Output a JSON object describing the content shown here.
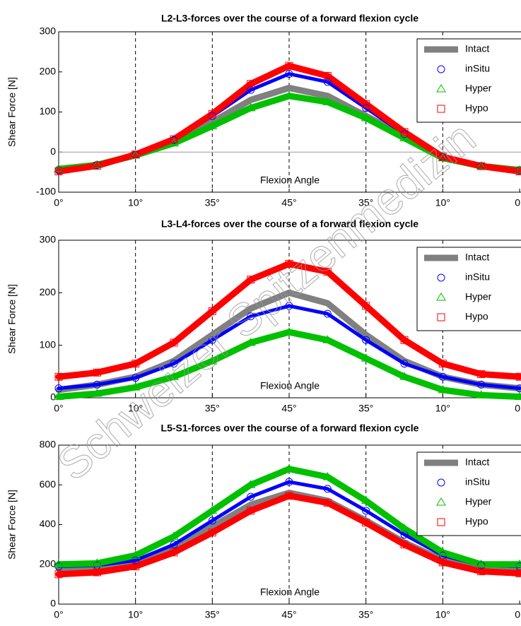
{
  "chart_data": [
    {
      "type": "line",
      "title": "L2-L3-forces over the course of a forward flexion cycle",
      "ylabel": "Shear Force [N]",
      "annotation": "Flexion Angle",
      "x": [
        0,
        0.5,
        1,
        1.5,
        2,
        2.5,
        3,
        3.5,
        4,
        4.5,
        5,
        5.5,
        6
      ],
      "xlim": [
        0,
        6
      ],
      "xticks": [
        {
          "value": 0,
          "label": "0°"
        },
        {
          "value": 1,
          "label": "10°"
        },
        {
          "value": 2,
          "label": "35°"
        },
        {
          "value": 3,
          "label": "45°"
        },
        {
          "value": 4,
          "label": "35°"
        },
        {
          "value": 5,
          "label": "10°"
        },
        {
          "value": 6,
          "label": "0°"
        }
      ],
      "ylim": [
        -100,
        300
      ],
      "yticks": [
        -100,
        0,
        100,
        200,
        300
      ],
      "grid": "x",
      "zero_line": true,
      "legend": "upper right",
      "series": [
        {
          "name": "Intact",
          "color": "#808080",
          "marker": "none",
          "values": [
            -45,
            -32,
            -8,
            25,
            75,
            130,
            160,
            140,
            90,
            40,
            -15,
            -35,
            -45
          ]
        },
        {
          "name": "inSitu",
          "color": "#0000ff",
          "marker": "circle",
          "values": [
            -45,
            -32,
            -6,
            30,
            90,
            155,
            195,
            175,
            110,
            45,
            -12,
            -35,
            -45
          ]
        },
        {
          "name": "Hyper",
          "color": "#00c000",
          "marker": "triangle",
          "values": [
            -42,
            -32,
            -8,
            22,
            65,
            110,
            140,
            125,
            85,
            35,
            -15,
            -35,
            -45
          ]
        },
        {
          "name": "Hypo",
          "color": "#ff0000",
          "marker": "square",
          "values": [
            -48,
            -34,
            -6,
            32,
            95,
            170,
            215,
            190,
            120,
            50,
            -12,
            -35,
            -48
          ]
        }
      ]
    },
    {
      "type": "line",
      "title": "L3-L4-forces over the course of a forward flexion cycle",
      "ylabel": "Shear Force [N]",
      "annotation": "Flexion Angle",
      "x": [
        0,
        0.5,
        1,
        1.5,
        2,
        2.5,
        3,
        3.5,
        4,
        4.5,
        5,
        5.5,
        6
      ],
      "xlim": [
        0,
        6
      ],
      "xticks": [
        {
          "value": 0,
          "label": "0°"
        },
        {
          "value": 1,
          "label": "10°"
        },
        {
          "value": 2,
          "label": "35°"
        },
        {
          "value": 3,
          "label": "45°"
        },
        {
          "value": 4,
          "label": "35°"
        },
        {
          "value": 5,
          "label": "10°"
        },
        {
          "value": 6,
          "label": "0°"
        }
      ],
      "ylim": [
        0,
        300
      ],
      "yticks": [
        0,
        100,
        200,
        300
      ],
      "grid": "x",
      "zero_line": false,
      "legend": "upper right",
      "series": [
        {
          "name": "Intact",
          "color": "#808080",
          "marker": "none",
          "values": [
            15,
            25,
            40,
            70,
            120,
            170,
            200,
            180,
            120,
            70,
            40,
            25,
            18
          ]
        },
        {
          "name": "inSitu",
          "color": "#0000ff",
          "marker": "circle",
          "values": [
            18,
            25,
            38,
            65,
            110,
            155,
            175,
            160,
            110,
            65,
            40,
            25,
            18
          ]
        },
        {
          "name": "Hyper",
          "color": "#00c000",
          "marker": "triangle",
          "values": [
            2,
            8,
            20,
            40,
            70,
            105,
            125,
            110,
            75,
            40,
            15,
            5,
            2
          ]
        },
        {
          "name": "Hypo",
          "color": "#ff0000",
          "marker": "square",
          "values": [
            40,
            48,
            65,
            105,
            165,
            225,
            255,
            240,
            175,
            110,
            65,
            45,
            40
          ]
        }
      ]
    },
    {
      "type": "line",
      "title": "L5-S1-forces over the course of a forward flexion cycle",
      "ylabel": "Shear Force [N]",
      "annotation": "Flexion Angle",
      "x": [
        0,
        0.5,
        1,
        1.5,
        2,
        2.5,
        3,
        3.5,
        4,
        4.5,
        5,
        5.5,
        6
      ],
      "xlim": [
        0,
        6
      ],
      "xticks": [
        {
          "value": 0,
          "label": "0°"
        },
        {
          "value": 1,
          "label": "10°"
        },
        {
          "value": 2,
          "label": "35°"
        },
        {
          "value": 3,
          "label": "45°"
        },
        {
          "value": 4,
          "label": "35°"
        },
        {
          "value": 5,
          "label": "10°"
        },
        {
          "value": 6,
          "label": "0°"
        }
      ],
      "ylim": [
        0,
        800
      ],
      "yticks": [
        0,
        200,
        400,
        600,
        800
      ],
      "grid": "x",
      "zero_line": false,
      "legend": "upper right",
      "series": [
        {
          "name": "Intact",
          "color": "#808080",
          "marker": "none",
          "values": [
            180,
            185,
            210,
            280,
            390,
            500,
            560,
            520,
            420,
            310,
            220,
            180,
            180
          ]
        },
        {
          "name": "inSitu",
          "color": "#0000ff",
          "marker": "circle",
          "values": [
            190,
            195,
            220,
            300,
            420,
            540,
            615,
            580,
            470,
            350,
            245,
            195,
            190
          ]
        },
        {
          "name": "Hyper",
          "color": "#00c000",
          "marker": "triangle",
          "values": [
            200,
            205,
            245,
            340,
            470,
            600,
            680,
            640,
            520,
            380,
            260,
            200,
            200
          ]
        },
        {
          "name": "Hypo",
          "color": "#ff0000",
          "marker": "square",
          "values": [
            150,
            160,
            190,
            260,
            360,
            470,
            545,
            510,
            410,
            300,
            210,
            165,
            155
          ]
        }
      ]
    }
  ],
  "watermark": "Schweizer Spitzenmedizin"
}
